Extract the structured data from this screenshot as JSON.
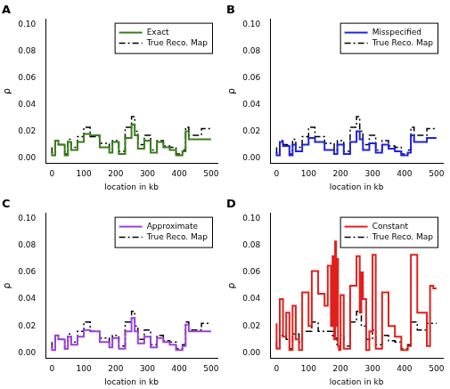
{
  "chart_data": [
    {
      "type": "line",
      "title": "A",
      "x_label": "location in kb",
      "y_label": "ρ",
      "x": [
        0,
        10,
        20,
        40,
        50,
        60,
        80,
        100,
        120,
        150,
        180,
        190,
        210,
        230,
        250,
        260,
        270,
        290,
        310,
        330,
        350,
        370,
        390,
        410,
        420,
        430,
        470,
        480,
        500
      ],
      "series": [
        {
          "name": "Exact",
          "color": "#3a7d1c",
          "line_style": "solid",
          "values": [
            0.005,
            0.002,
            0.013,
            0.01,
            0.002,
            0.012,
            0.006,
            0.012,
            0.018,
            0.017,
            0.008,
            0.004,
            0.012,
            0.003,
            0.015,
            0.025,
            0.017,
            0.007,
            0.013,
            0.004,
            0.012,
            0.008,
            0.006,
            0.002,
            0.005,
            0.02,
            0.014,
            0.014,
            0.014
          ]
        },
        {
          "name": "True Reco. Map",
          "color": "#000000",
          "line_style": "dashdot",
          "values": [
            0.008,
            0.004,
            0.013,
            0.01,
            0.003,
            0.014,
            0.008,
            0.016,
            0.023,
            0.016,
            0.011,
            0.006,
            0.013,
            0.005,
            0.023,
            0.031,
            0.02,
            0.01,
            0.017,
            0.006,
            0.013,
            0.009,
            0.008,
            0.003,
            0.006,
            0.023,
            0.017,
            0.022,
            0.022
          ]
        }
      ],
      "xlim": [
        -20,
        520
      ],
      "ylim": [
        -0.004,
        0.104
      ],
      "xticks": [
        0,
        100,
        200,
        300,
        400,
        500
      ],
      "yticks": [
        {
          "value": 0,
          "label": "0.00"
        },
        {
          "value": 0.02,
          "label": "0.02"
        },
        {
          "value": 0.04,
          "label": "0.04"
        },
        {
          "value": 0.06,
          "label": "0.06"
        },
        {
          "value": 0.08,
          "label": "0.08"
        },
        {
          "value": 0.1,
          "label": "0.10"
        }
      ],
      "grid": false,
      "legend": "top right"
    },
    {
      "type": "line",
      "title": "B",
      "x_label": "location in kb",
      "y_label": "ρ",
      "x": [
        0,
        10,
        20,
        40,
        50,
        60,
        80,
        100,
        120,
        150,
        180,
        190,
        210,
        230,
        250,
        260,
        270,
        290,
        310,
        330,
        350,
        370,
        390,
        410,
        420,
        430,
        470,
        480,
        500
      ],
      "series": [
        {
          "name": "Misspecified",
          "color": "#2222dd",
          "line_style": "solid",
          "values": [
            0.004,
            0.002,
            0.012,
            0.009,
            0.002,
            0.01,
            0.005,
            0.01,
            0.015,
            0.012,
            0.006,
            0.003,
            0.01,
            0.003,
            0.012,
            0.02,
            0.014,
            0.006,
            0.011,
            0.004,
            0.01,
            0.007,
            0.005,
            0.002,
            0.004,
            0.017,
            0.012,
            0.015,
            0.015
          ]
        },
        {
          "name": "True Reco. Map",
          "color": "#000000",
          "line_style": "dashdot",
          "values": [
            0.008,
            0.004,
            0.013,
            0.01,
            0.003,
            0.014,
            0.008,
            0.016,
            0.023,
            0.016,
            0.011,
            0.006,
            0.013,
            0.005,
            0.023,
            0.031,
            0.02,
            0.01,
            0.017,
            0.006,
            0.013,
            0.009,
            0.008,
            0.003,
            0.006,
            0.023,
            0.017,
            0.022,
            0.022
          ]
        }
      ],
      "xlim": [
        -20,
        520
      ],
      "ylim": [
        -0.004,
        0.104
      ],
      "xticks": [
        0,
        100,
        200,
        300,
        400,
        500
      ],
      "yticks": [
        {
          "value": 0,
          "label": "0.00"
        },
        {
          "value": 0.02,
          "label": "0.02"
        },
        {
          "value": 0.04,
          "label": "0.04"
        },
        {
          "value": 0.06,
          "label": "0.06"
        },
        {
          "value": 0.08,
          "label": "0.08"
        },
        {
          "value": 0.1,
          "label": "0.10"
        }
      ],
      "grid": false,
      "legend": "top right"
    },
    {
      "type": "line",
      "title": "C",
      "x_label": "location in kb",
      "y_label": "ρ",
      "x": [
        0,
        10,
        20,
        40,
        50,
        60,
        80,
        100,
        120,
        150,
        180,
        190,
        210,
        230,
        250,
        260,
        270,
        290,
        310,
        330,
        350,
        370,
        390,
        410,
        420,
        430,
        470,
        480,
        500
      ],
      "series": [
        {
          "name": "Approximate",
          "color": "#9b42d9",
          "line_style": "solid",
          "values": [
            0.005,
            0.002,
            0.013,
            0.01,
            0.003,
            0.012,
            0.006,
            0.012,
            0.017,
            0.016,
            0.008,
            0.004,
            0.011,
            0.003,
            0.016,
            0.026,
            0.016,
            0.007,
            0.012,
            0.004,
            0.011,
            0.008,
            0.006,
            0.002,
            0.005,
            0.021,
            0.016,
            0.016,
            0.016
          ]
        },
        {
          "name": "True Reco. Map",
          "color": "#000000",
          "line_style": "dashdot",
          "values": [
            0.008,
            0.004,
            0.013,
            0.01,
            0.003,
            0.014,
            0.008,
            0.016,
            0.023,
            0.016,
            0.011,
            0.006,
            0.013,
            0.005,
            0.023,
            0.031,
            0.02,
            0.01,
            0.017,
            0.006,
            0.013,
            0.009,
            0.008,
            0.003,
            0.006,
            0.023,
            0.017,
            0.022,
            0.022
          ]
        }
      ],
      "xlim": [
        -20,
        520
      ],
      "ylim": [
        -0.004,
        0.104
      ],
      "xticks": [
        0,
        100,
        200,
        300,
        400,
        500
      ],
      "yticks": [
        {
          "value": 0,
          "label": "0.00"
        },
        {
          "value": 0.02,
          "label": "0.02"
        },
        {
          "value": 0.04,
          "label": "0.04"
        },
        {
          "value": 0.06,
          "label": "0.06"
        },
        {
          "value": 0.08,
          "label": "0.08"
        },
        {
          "value": 0.1,
          "label": "0.10"
        }
      ],
      "grid": false,
      "legend": "top right"
    },
    {
      "type": "line",
      "title": "D",
      "x_label": "location in kb",
      "y_label": "ρ",
      "x": [
        0,
        10,
        20,
        30,
        40,
        50,
        60,
        70,
        80,
        100,
        110,
        120,
        130,
        150,
        160,
        170,
        175,
        180,
        183,
        186,
        189,
        192,
        195,
        200,
        210,
        230,
        250,
        260,
        265,
        270,
        280,
        290,
        300,
        310,
        330,
        350,
        370,
        390,
        410,
        420,
        430,
        440,
        470,
        480,
        490,
        495,
        500
      ],
      "series": [
        {
          "name": "Constant",
          "color": "#e0201c",
          "line_style": "solid",
          "values": [
            0.022,
            0.003,
            0.04,
            0.012,
            0.03,
            0.002,
            0.035,
            0.01,
            0.002,
            0.045,
            0.02,
            0.061,
            0.061,
            0.044,
            0.035,
            0.065,
            0.02,
            0.072,
            0.01,
            0.083,
            0.02,
            0.07,
            0.005,
            0.002,
            0.043,
            0.003,
            0.05,
            0.072,
            0.03,
            0.06,
            0.04,
            0.002,
            0.016,
            0.073,
            0.003,
            0.045,
            0.02,
            0.012,
            0.002,
            0.005,
            0.073,
            0.073,
            0.03,
            0.005,
            0.05,
            0.048,
            0.048
          ]
        },
        {
          "name": "True Reco. Map",
          "color": "#000000",
          "line_style": "dashdot",
          "values": [
            0.008,
            0.004,
            0.013,
            0.013,
            0.01,
            0.003,
            0.014,
            0.014,
            0.008,
            0.016,
            0.016,
            0.023,
            0.023,
            0.016,
            0.016,
            0.016,
            0.016,
            0.011,
            0.011,
            0.011,
            0.011,
            0.006,
            0.006,
            0.006,
            0.013,
            0.005,
            0.023,
            0.031,
            0.031,
            0.02,
            0.02,
            0.01,
            0.01,
            0.017,
            0.006,
            0.013,
            0.009,
            0.008,
            0.003,
            0.006,
            0.023,
            0.023,
            0.017,
            0.022,
            0.022,
            0.022,
            0.022
          ]
        }
      ],
      "xlim": [
        -20,
        520
      ],
      "ylim": [
        -0.004,
        0.104
      ],
      "xticks": [
        0,
        100,
        200,
        300,
        400,
        500
      ],
      "yticks": [
        {
          "value": 0,
          "label": "0.00"
        },
        {
          "value": 0.02,
          "label": "0.02"
        },
        {
          "value": 0.04,
          "label": "0.04"
        },
        {
          "value": 0.06,
          "label": "0.06"
        },
        {
          "value": 0.08,
          "label": "0.08"
        },
        {
          "value": 0.1,
          "label": "0.10"
        }
      ],
      "grid": false,
      "legend": "top right"
    }
  ]
}
